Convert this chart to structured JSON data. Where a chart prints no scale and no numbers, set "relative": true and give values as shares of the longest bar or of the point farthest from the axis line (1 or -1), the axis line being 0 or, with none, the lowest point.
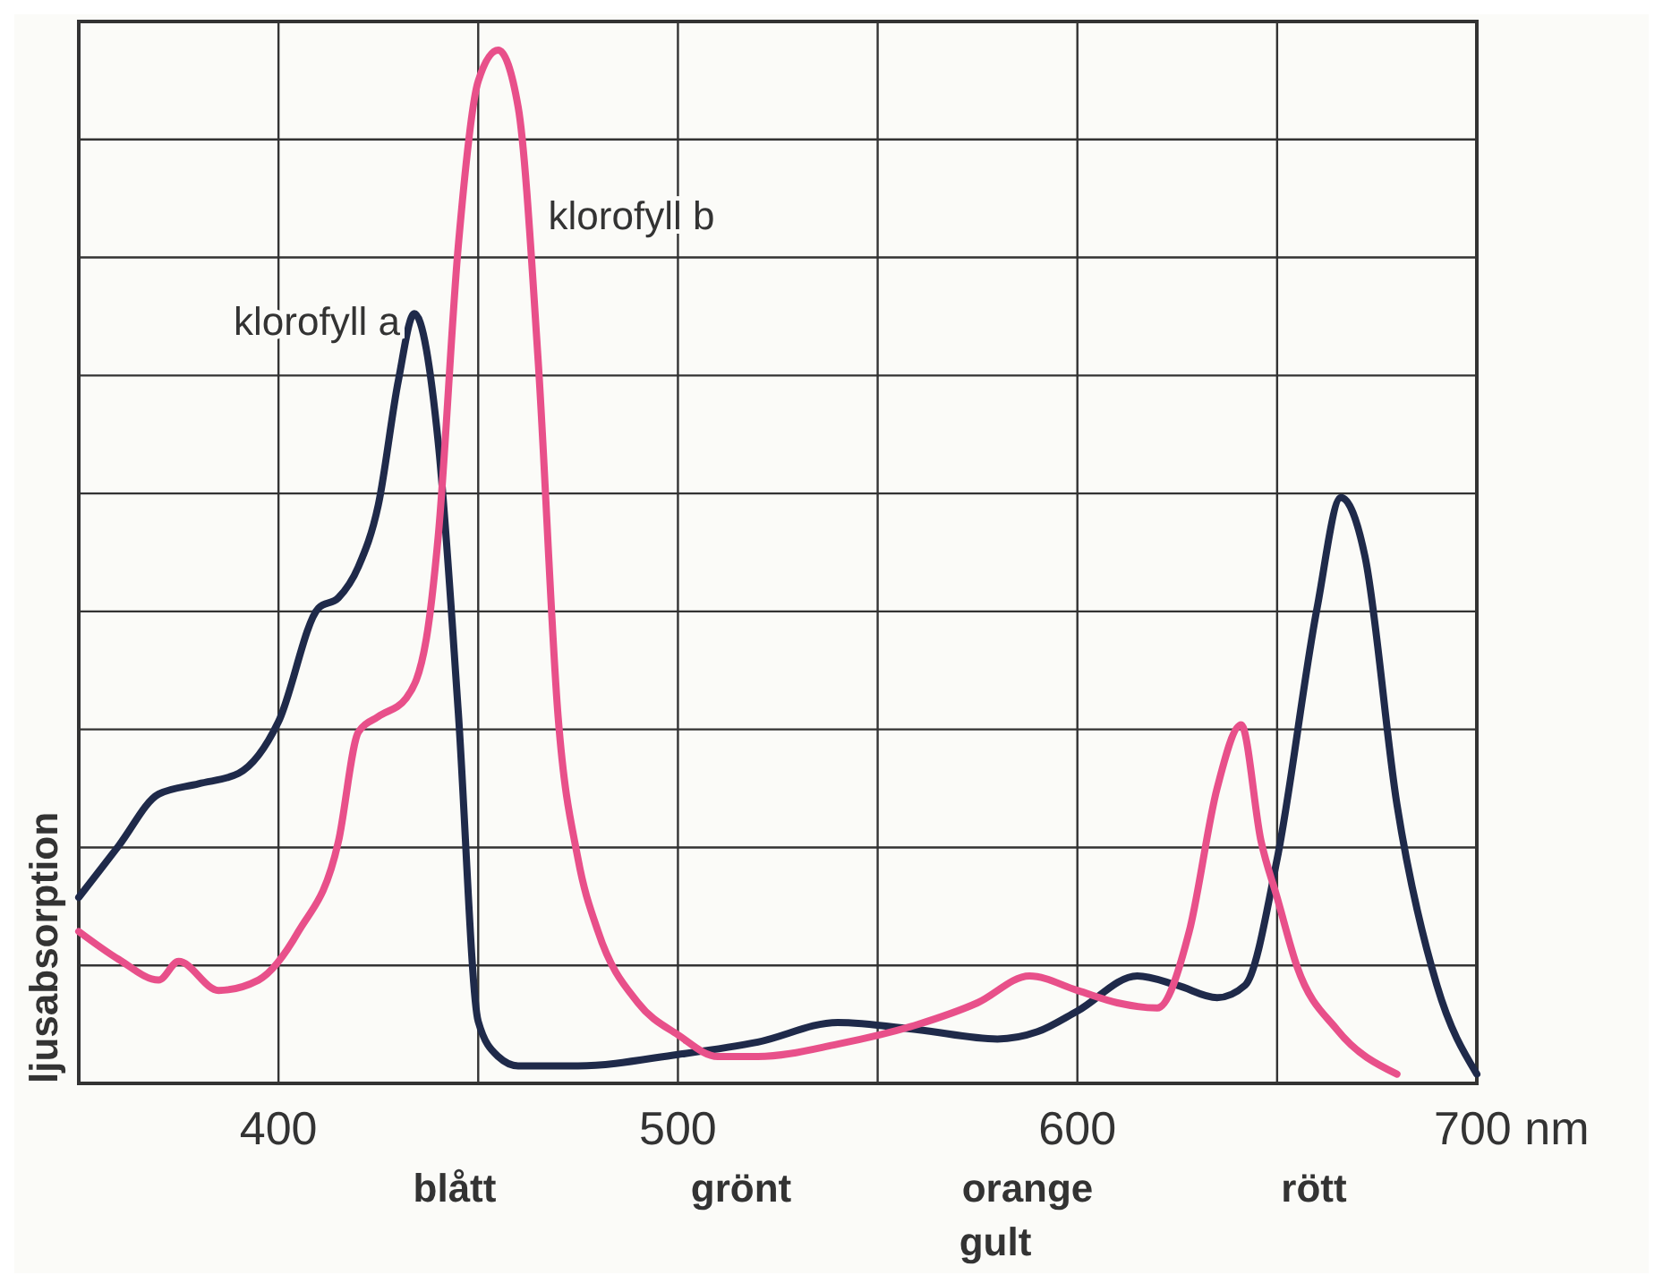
{
  "chart_data": {
    "type": "line",
    "relative": true,
    "ylabel": "ljusabsorption",
    "xlim": [
      350,
      700
    ],
    "xticks": [
      400,
      {
        "value": 450,
        "label": null
      },
      500,
      {
        "value": 550,
        "label": null
      },
      600,
      {
        "value": 650,
        "label": null
      },
      {
        "value": 700,
        "label": "700 nm"
      }
    ],
    "grid": true,
    "legend": false,
    "series": [
      {
        "name": "klorofyll a",
        "color": "#1f2a4a",
        "x": [
          350,
          360,
          370,
          380,
          390,
          400,
          410,
          415,
          420,
          425,
          430,
          434,
          440,
          445,
          450,
          455,
          460,
          475,
          500,
          520,
          540,
          560,
          580,
          590,
          600,
          615,
          625,
          635,
          642,
          650,
          660,
          666,
          672,
          680,
          690,
          700
        ],
        "values": [
          0.18,
          0.23,
          0.28,
          0.29,
          0.3,
          0.35,
          0.46,
          0.47,
          0.5,
          0.56,
          0.68,
          0.745,
          0.62,
          0.36,
          0.06,
          0.026,
          0.017,
          0.017,
          0.028,
          0.04,
          0.059,
          0.052,
          0.043,
          0.05,
          0.07,
          0.104,
          0.095,
          0.083,
          0.095,
          0.217,
          0.46,
          0.567,
          0.51,
          0.27,
          0.095,
          0.009
        ]
      },
      {
        "name": "klorofyll b",
        "color": "#e8508a",
        "x": [
          350,
          360,
          370,
          375,
          385,
          395,
          405,
          415,
          420,
          425,
          432,
          437,
          440,
          445,
          450,
          455,
          460,
          465,
          470,
          475,
          480,
          490,
          500,
          510,
          520,
          540,
          560,
          575,
          588,
          600,
          610,
          620,
          628,
          635,
          641,
          646,
          650,
          655,
          665,
          680
        ],
        "values": [
          0.147,
          0.12,
          0.1,
          0.118,
          0.09,
          0.1,
          0.147,
          0.234,
          0.34,
          0.355,
          0.373,
          0.43,
          0.53,
          0.81,
          0.97,
          1,
          0.945,
          0.7,
          0.355,
          0.217,
          0.147,
          0.078,
          0.047,
          0.026,
          0.026,
          0.038,
          0.057,
          0.078,
          0.104,
          0.09,
          0.078,
          0.073,
          0.147,
          0.286,
          0.347,
          0.234,
          0.18,
          0.113,
          0.052,
          0.009
        ]
      }
    ],
    "annotations": [
      "blått",
      "grönt",
      "orange gult",
      "rött"
    ]
  }
}
